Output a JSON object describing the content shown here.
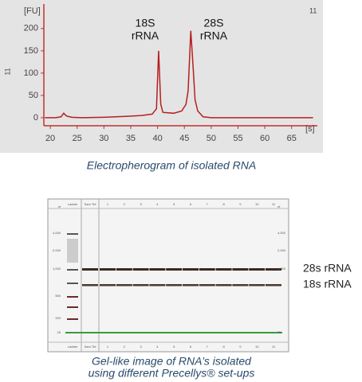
{
  "chart_data": {
    "type": "line",
    "y_label": "[FU]",
    "x_unit": "[s]",
    "corner_label": "11",
    "side_label": "11",
    "annotations": [
      [
        "18S",
        "rRNA"
      ],
      [
        "28S",
        "rRNA"
      ]
    ],
    "x": [
      19,
      21,
      22,
      22.5,
      23,
      24,
      26,
      30,
      34,
      37,
      39,
      39.8,
      40.2,
      40.6,
      41,
      43,
      44.5,
      45.3,
      45.7,
      46.2,
      46.6,
      47,
      47.5,
      48.5,
      50,
      69
    ],
    "values": [
      0,
      0,
      2,
      10,
      4,
      1,
      0,
      1,
      3,
      5,
      8,
      20,
      150,
      30,
      12,
      10,
      15,
      30,
      60,
      195,
      120,
      40,
      15,
      2,
      0,
      0
    ],
    "color": "#b52020",
    "xlim": [
      18.8,
      69.8
    ],
    "xticks": [
      20,
      25,
      30,
      35,
      40,
      45,
      50,
      55,
      60,
      65
    ],
    "ylim": [
      -18,
      255
    ],
    "yticks": [
      0,
      50,
      100,
      150,
      200
    ],
    "caption": "Electropherogram of isolated RNA"
  },
  "gel": {
    "lanes": [
      "Ladder",
      "Sam Tbl",
      "1",
      "2",
      "3",
      "4",
      "5",
      "6",
      "7",
      "8",
      "9",
      "10",
      "11"
    ],
    "left_markers": [
      "nt",
      "4,000",
      "2,000",
      "1,000",
      "500",
      "200",
      "25"
    ],
    "right_markers": [
      "nt",
      "4,000",
      "2,000",
      "1,000",
      "25"
    ],
    "band_labels": [
      "28s rRNA",
      "18s rRNA"
    ],
    "caption": [
      "Gel-like image of RNA’s isolated",
      "using different Precellys® set-ups"
    ]
  }
}
